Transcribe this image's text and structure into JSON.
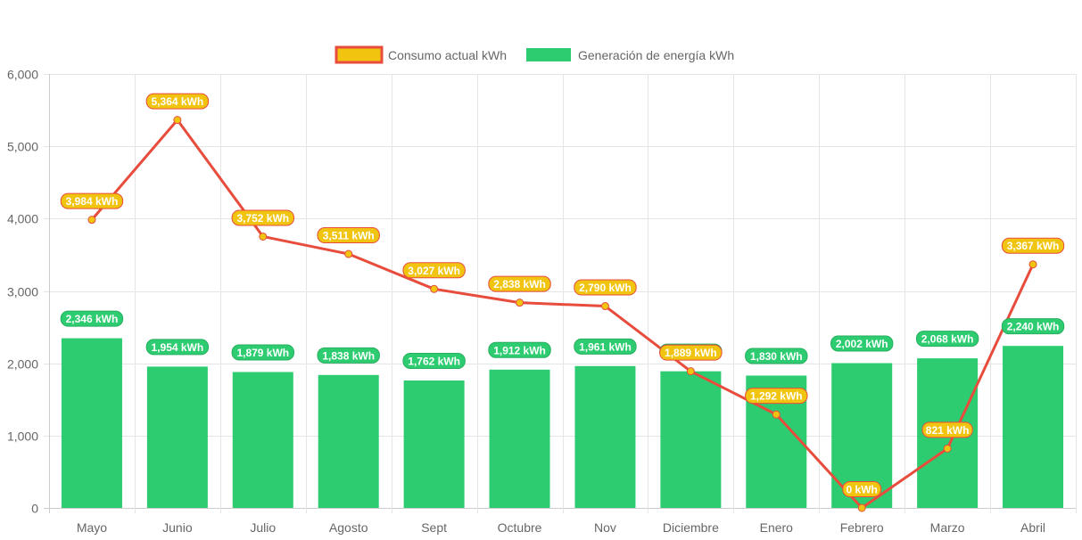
{
  "chart_data": {
    "type": "bar",
    "title": "",
    "xlabel": "",
    "ylabel": "",
    "ylim": [
      0,
      6000
    ],
    "y_ticks": [
      0,
      1000,
      2000,
      3000,
      4000,
      5000,
      6000
    ],
    "y_tick_labels": [
      "0",
      "1,000",
      "2,000",
      "3,000",
      "4,000",
      "5,000",
      "6,000"
    ],
    "grid": true,
    "legend_position": "top-center",
    "categories": [
      "Mayo",
      "Junio",
      "Julio",
      "Agosto",
      "Sept",
      "Octubre",
      "Nov",
      "Diciembre",
      "Enero",
      "Febrero",
      "Marzo",
      "Abril"
    ],
    "series": [
      {
        "name": "Consumo actual kWh",
        "type": "line",
        "color": "#e74c3c",
        "point_color": "#f1c40f",
        "label_bg": "#f1c40f",
        "label_border": "#e74c3c",
        "values": [
          3984,
          5364,
          3752,
          3511,
          3027,
          2838,
          2790,
          1889,
          1292,
          0,
          821,
          3367
        ],
        "labels": [
          "3,984 kWh",
          "5,364 kWh",
          "3,752 kWh",
          "3,511 kWh",
          "3,027 kWh",
          "2,838 kWh",
          "2,790 kWh",
          "1,889 kWh",
          "1,292 kWh",
          "0 kWh",
          "821 kWh",
          "3,367 kWh"
        ]
      },
      {
        "name": "Generación de energía kWh",
        "type": "bar",
        "color": "#2ecc71",
        "label_bg": "#2ecc71",
        "label_border": "#27ae60",
        "values": [
          2346,
          1954,
          1879,
          1838,
          1762,
          1912,
          1961,
          1889,
          1830,
          2002,
          2068,
          2240
        ],
        "labels": [
          "2,346 kWh",
          "1,954 kWh",
          "1,879 kWh",
          "1,838 kWh",
          "1,762 kWh",
          "1,912 kWh",
          "1,961 kWh",
          "1,889 kWh",
          "1,830 kWh",
          "2,002 kWh",
          "2,068 kWh",
          "2,240 kWh"
        ]
      }
    ]
  },
  "legend": {
    "items": [
      {
        "label": "Consumo actual kWh",
        "fill": "#f1c40f",
        "border": "#e74c3c"
      },
      {
        "label": "Generación de energía kWh",
        "fill": "#2ecc71",
        "border": "#2ecc71"
      }
    ]
  },
  "colors": {
    "grid": "#e5e5e5",
    "axis": "#cccccc",
    "tick_text": "#666666"
  }
}
